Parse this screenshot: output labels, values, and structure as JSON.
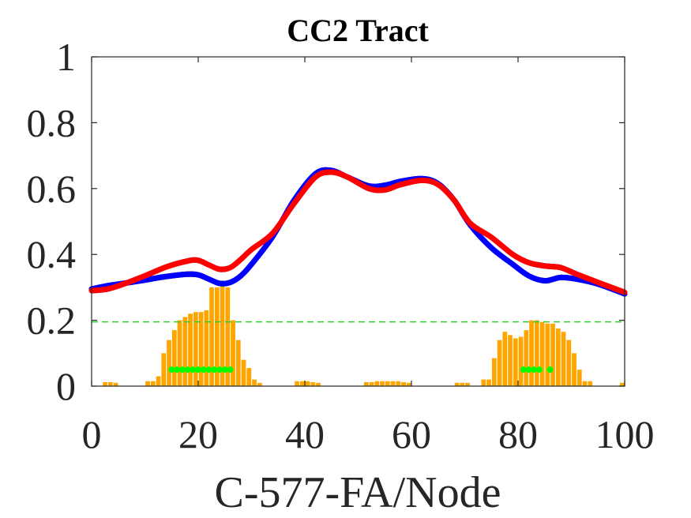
{
  "chart_data": {
    "type": "line",
    "title": "CC2 Tract",
    "xlabel": "C-577-FA/Node",
    "ylabel": "",
    "xlim": [
      0,
      100
    ],
    "ylim": [
      0,
      1
    ],
    "x_ticks": [
      0,
      20,
      40,
      60,
      80,
      100
    ],
    "x_tick_labels": [
      "0",
      "20",
      "40",
      "60",
      "80",
      "100"
    ],
    "y_ticks": [
      0,
      0.2,
      0.4,
      0.6,
      0.8,
      1
    ],
    "y_tick_labels": [
      "0",
      "0.2",
      "0.4",
      "0.6",
      "0.8",
      "1"
    ],
    "grid": false,
    "threshold_line": {
      "y": 0.195,
      "color": "#33cc33",
      "style": "dashed"
    },
    "series": [
      {
        "color": "#0000ff",
        "x": [
          0,
          3,
          6,
          10,
          14,
          18,
          20,
          22,
          24,
          26,
          28,
          30,
          34,
          38,
          42,
          45,
          48,
          52,
          55,
          58,
          62,
          65,
          68,
          71,
          75,
          79,
          82,
          85,
          88,
          91,
          95,
          100
        ],
        "y": [
          0.295,
          0.305,
          0.312,
          0.322,
          0.333,
          0.34,
          0.338,
          0.325,
          0.312,
          0.315,
          0.335,
          0.37,
          0.455,
          0.565,
          0.645,
          0.655,
          0.635,
          0.608,
          0.61,
          0.622,
          0.63,
          0.615,
          0.565,
          0.49,
          0.42,
          0.37,
          0.335,
          0.32,
          0.33,
          0.325,
          0.31,
          0.28
        ]
      },
      {
        "color": "#ff0000",
        "x": [
          0,
          3,
          6,
          10,
          14,
          18,
          20,
          22,
          24,
          26,
          28,
          30,
          34,
          38,
          42,
          45,
          48,
          52,
          55,
          58,
          62,
          65,
          68,
          71,
          75,
          79,
          82,
          85,
          88,
          91,
          95,
          100
        ],
        "y": [
          0.29,
          0.295,
          0.31,
          0.335,
          0.362,
          0.38,
          0.382,
          0.368,
          0.355,
          0.36,
          0.385,
          0.415,
          0.465,
          0.555,
          0.635,
          0.65,
          0.635,
          0.6,
          0.596,
          0.612,
          0.625,
          0.612,
          0.565,
          0.495,
          0.452,
          0.4,
          0.375,
          0.365,
          0.36,
          0.34,
          0.315,
          0.285
        ]
      }
    ],
    "bars": {
      "color": "#ffa500",
      "x": [
        1,
        2,
        3,
        4,
        5,
        6,
        7,
        8,
        9,
        10,
        11,
        12,
        13,
        14,
        15,
        16,
        17,
        18,
        19,
        20,
        21,
        22,
        23,
        24,
        25,
        26,
        27,
        28,
        29,
        30,
        31,
        32,
        33,
        34,
        35,
        36,
        37,
        38,
        39,
        40,
        41,
        42,
        43,
        44,
        45,
        46,
        47,
        48,
        49,
        50,
        51,
        52,
        53,
        54,
        55,
        56,
        57,
        58,
        59,
        60,
        61,
        62,
        63,
        64,
        65,
        66,
        67,
        68,
        69,
        70,
        71,
        72,
        73,
        74,
        75,
        76,
        77,
        78,
        79,
        80,
        81,
        82,
        83,
        84,
        85,
        86,
        87,
        88,
        89,
        90,
        91,
        92,
        93,
        94,
        95,
        96,
        97,
        98,
        99,
        100
      ],
      "values": [
        0,
        0,
        0.012,
        0.012,
        0.01,
        0,
        0,
        0,
        0,
        0,
        0.015,
        0.015,
        0.03,
        0.1,
        0.14,
        0.17,
        0.2,
        0.21,
        0.22,
        0.225,
        0.225,
        0.23,
        0.3,
        0.3,
        0.32,
        0.3,
        0.2,
        0.14,
        0.08,
        0.055,
        0.02,
        0.01,
        0,
        0,
        0,
        0,
        0,
        0,
        0.015,
        0.015,
        0.015,
        0.012,
        0.01,
        0,
        0,
        0,
        0,
        0,
        0,
        0,
        0,
        0.012,
        0.012,
        0.015,
        0.015,
        0.015,
        0.015,
        0.015,
        0.012,
        0.01,
        0,
        0,
        0,
        0,
        0,
        0,
        0,
        0,
        0.01,
        0.01,
        0.01,
        0,
        0,
        0.02,
        0.02,
        0.085,
        0.14,
        0.165,
        0.155,
        0.145,
        0.15,
        0.17,
        0.2,
        0.2,
        0.195,
        0.19,
        0.19,
        0.175,
        0.165,
        0.14,
        0.1,
        0.05,
        0.015,
        0.015,
        0,
        0,
        0,
        0,
        0,
        0.01
      ]
    },
    "significance_markers": {
      "color": "#00ff00",
      "y": 0.05,
      "x": [
        15,
        16,
        17,
        18,
        19,
        20,
        21,
        22,
        23,
        24,
        25,
        26,
        81,
        82,
        83,
        84,
        86
      ]
    }
  }
}
